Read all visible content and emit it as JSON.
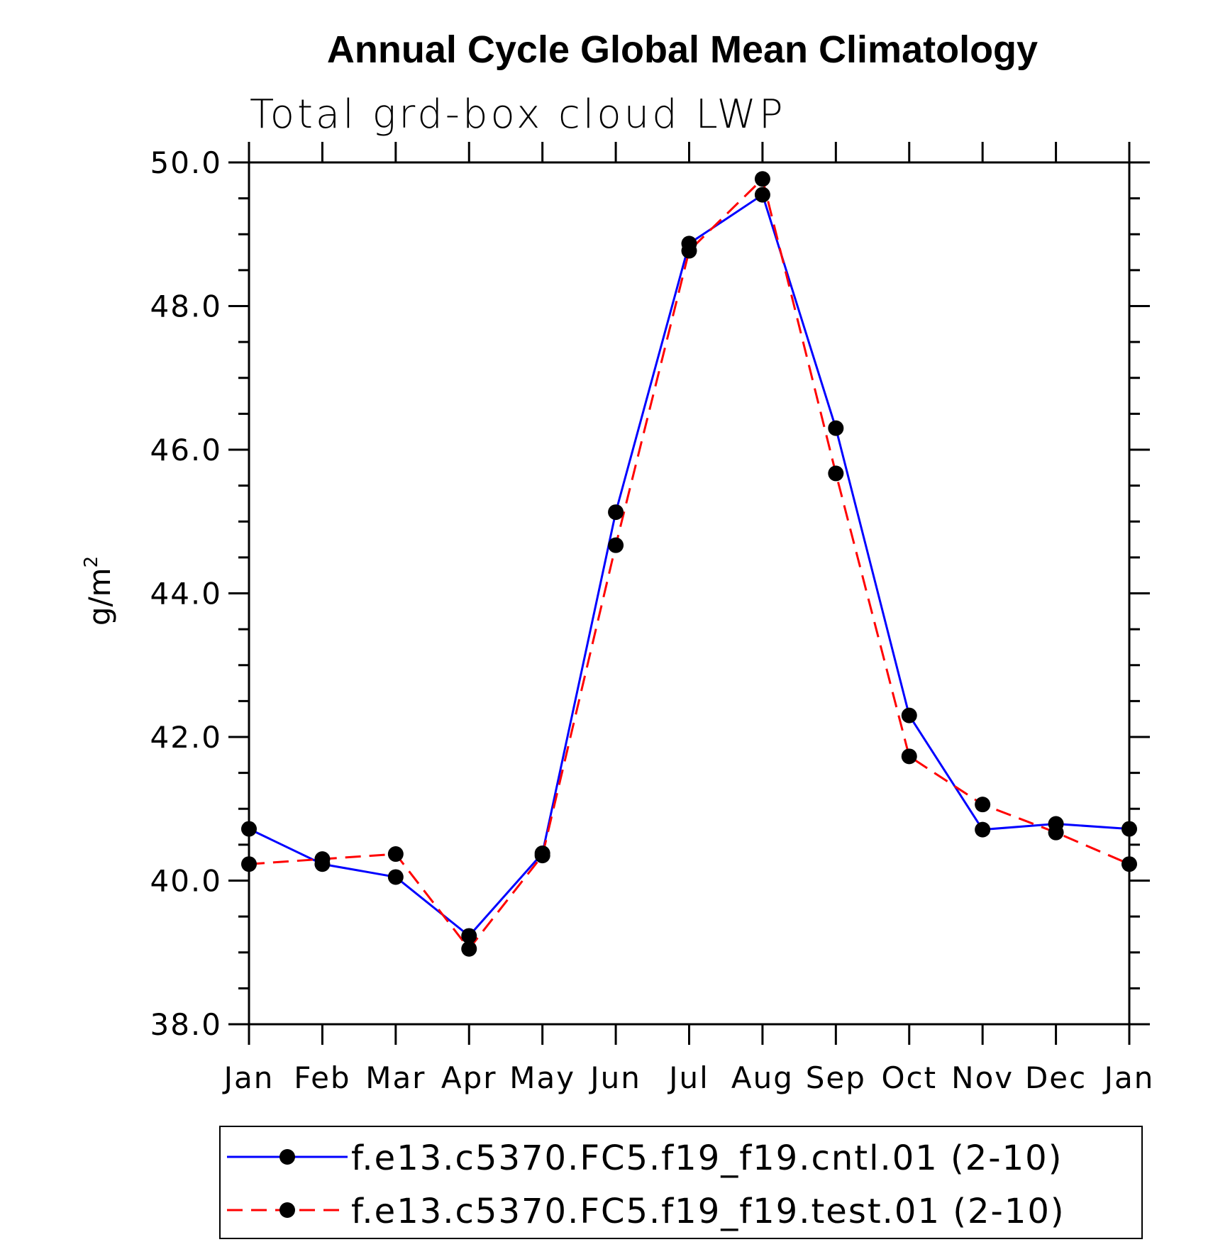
{
  "chart_data": {
    "type": "line",
    "title": "Annual Cycle Global Mean Climatology",
    "subtitle": "Total grd-box cloud LWP",
    "ylabel": "g/m",
    "ylabel_superscript": "2",
    "xlabel": "",
    "ylim": [
      38.0,
      50.0
    ],
    "yticks": [
      "38.0",
      "40.0",
      "42.0",
      "44.0",
      "46.0",
      "48.0",
      "50.0"
    ],
    "categories": [
      "Jan",
      "Feb",
      "Mar",
      "Apr",
      "May",
      "Jun",
      "Jul",
      "Aug",
      "Sep",
      "Oct",
      "Nov",
      "Dec",
      "Jan"
    ],
    "series": [
      {
        "name": "f.e13.c5370.FC5.f19_f19.cntl.01 (2-10)",
        "color": "#0000ff",
        "style": "solid",
        "values": [
          40.72,
          40.23,
          40.05,
          39.23,
          40.38,
          45.13,
          48.87,
          49.55,
          46.3,
          42.3,
          40.71,
          40.79,
          40.72
        ]
      },
      {
        "name": "f.e13.c5370.FC5.f19_f19.test.01 (2-10)",
        "color": "#ff0000",
        "style": "dashed",
        "values": [
          40.23,
          40.3,
          40.37,
          39.05,
          40.35,
          44.67,
          48.77,
          49.77,
          45.67,
          41.73,
          41.06,
          40.67,
          40.23
        ]
      }
    ],
    "marker_color": "#000000"
  }
}
